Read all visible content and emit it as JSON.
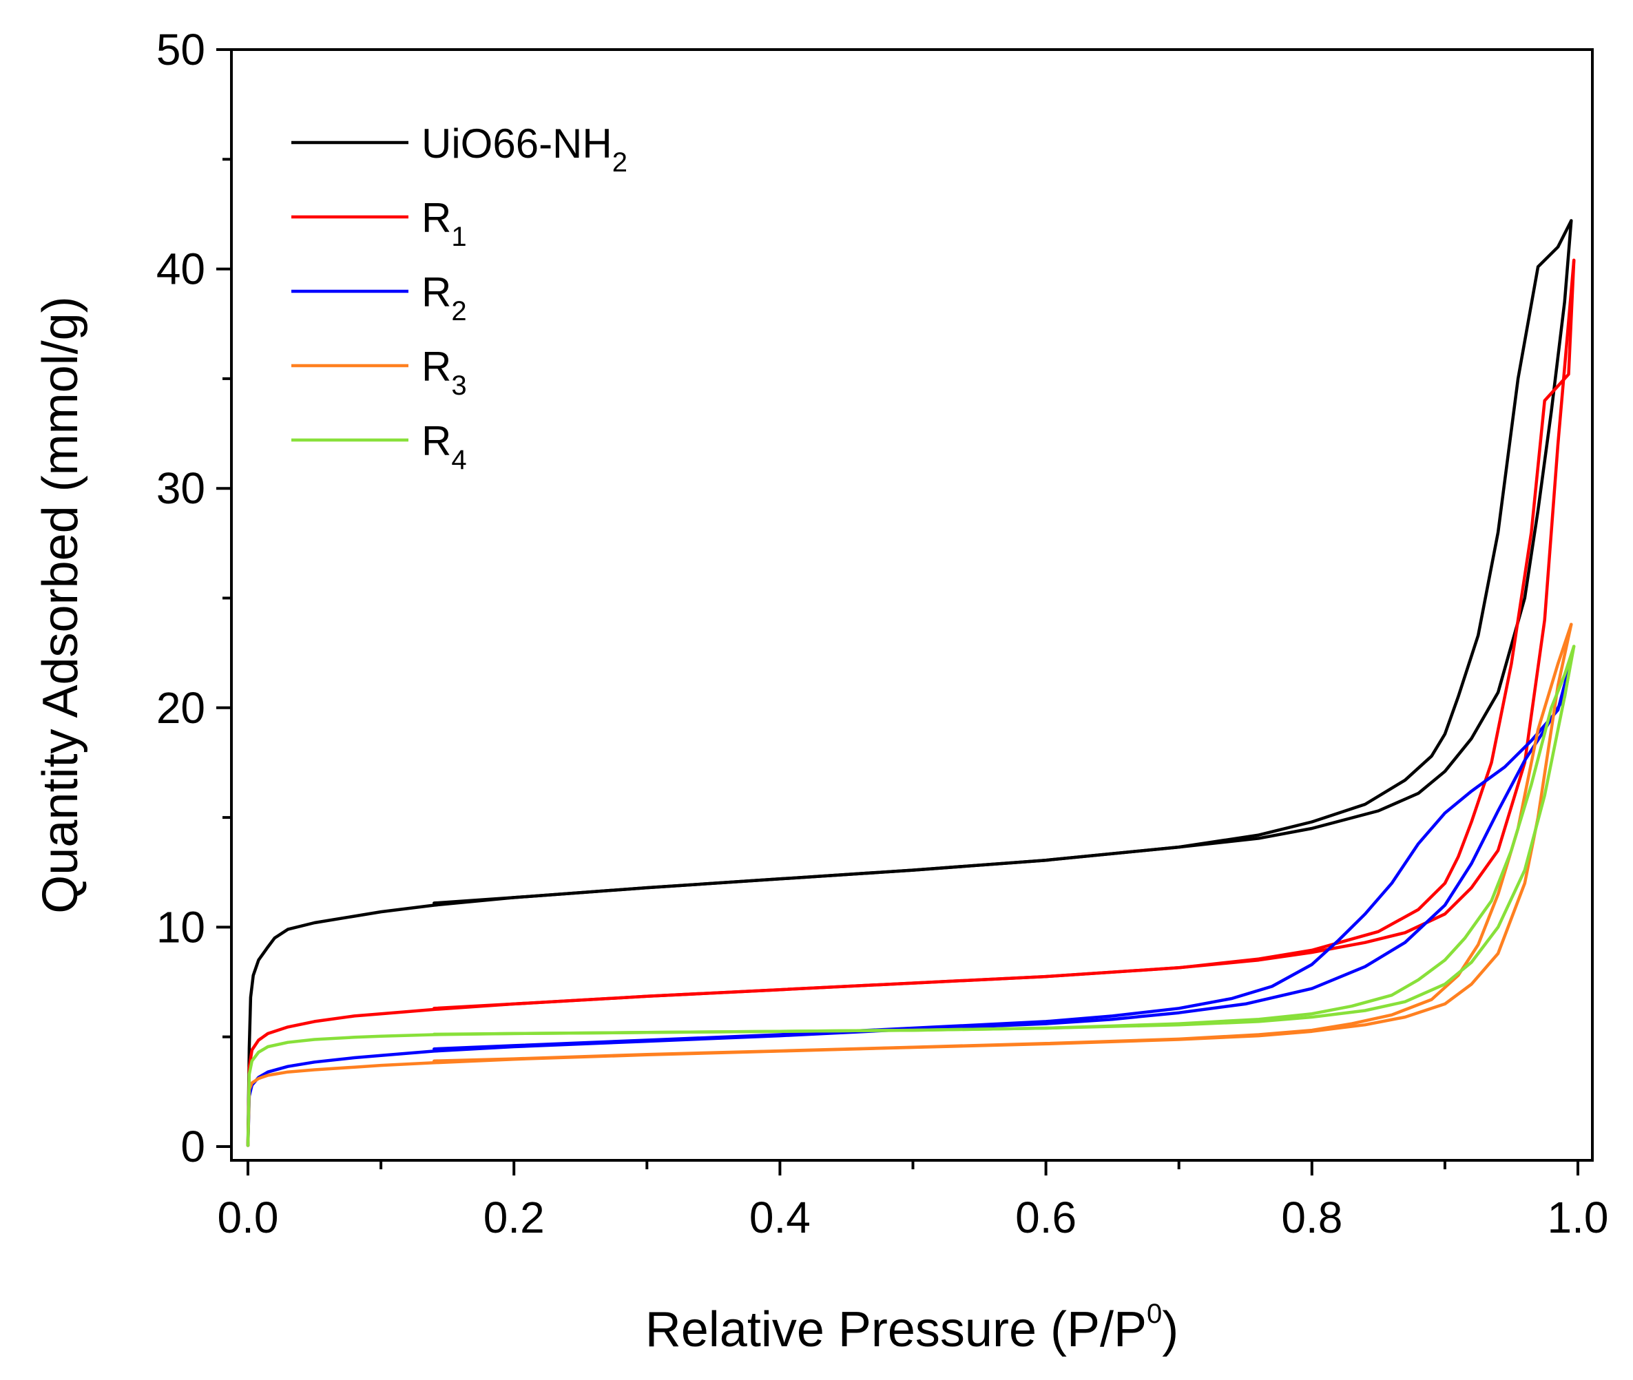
{
  "chart_data": {
    "type": "line",
    "title": "",
    "xlabel": "Relative Pressure (P/P",
    "xlabel_sup": "0",
    "xlabel_end": ")",
    "ylabel": "Quantity Adsorbed (mmol/g)",
    "xlim": [
      0,
      1.0
    ],
    "ylim": [
      0,
      50
    ],
    "x_ticks": [
      "0.0",
      "0.2",
      "0.4",
      "0.6",
      "0.8",
      "1.0"
    ],
    "x_tick_values": [
      0,
      0.2,
      0.4,
      0.6,
      0.8,
      1.0
    ],
    "y_ticks": [
      "0",
      "10",
      "20",
      "30",
      "40",
      "50"
    ],
    "y_tick_values": [
      0,
      10,
      20,
      30,
      40,
      50
    ],
    "grid": false,
    "legend_position": "top-left",
    "series": [
      {
        "name": "UiO66-NH",
        "name_sub": "2",
        "color": "#000000",
        "adsorption": [
          [
            0.0,
            0.05
          ],
          [
            0.001,
            4.5
          ],
          [
            0.002,
            6.8
          ],
          [
            0.004,
            7.8
          ],
          [
            0.008,
            8.5
          ],
          [
            0.015,
            9.1
          ],
          [
            0.02,
            9.5
          ],
          [
            0.03,
            9.9
          ],
          [
            0.05,
            10.2
          ],
          [
            0.08,
            10.5
          ],
          [
            0.1,
            10.7
          ],
          [
            0.14,
            11.0
          ],
          [
            0.2,
            11.35
          ],
          [
            0.3,
            11.8
          ],
          [
            0.4,
            12.2
          ],
          [
            0.5,
            12.6
          ],
          [
            0.6,
            13.05
          ],
          [
            0.7,
            13.65
          ],
          [
            0.76,
            14.05
          ],
          [
            0.8,
            14.5
          ],
          [
            0.85,
            15.3
          ],
          [
            0.88,
            16.1
          ],
          [
            0.9,
            17.1
          ],
          [
            0.92,
            18.6
          ],
          [
            0.94,
            20.7
          ],
          [
            0.96,
            25.0
          ],
          [
            0.97,
            29.0
          ],
          [
            0.98,
            33.5
          ],
          [
            0.99,
            38.5
          ],
          [
            0.995,
            42.2
          ]
        ],
        "desorption": [
          [
            0.995,
            42.2
          ],
          [
            0.985,
            41.0
          ],
          [
            0.97,
            40.1
          ],
          [
            0.955,
            35.0
          ],
          [
            0.94,
            28.0
          ],
          [
            0.925,
            23.3
          ],
          [
            0.91,
            20.5
          ],
          [
            0.9,
            18.8
          ],
          [
            0.89,
            17.8
          ],
          [
            0.87,
            16.7
          ],
          [
            0.84,
            15.6
          ],
          [
            0.8,
            14.8
          ],
          [
            0.76,
            14.2
          ],
          [
            0.7,
            13.65
          ],
          [
            0.6,
            13.05
          ],
          [
            0.5,
            12.6
          ],
          [
            0.4,
            12.2
          ],
          [
            0.3,
            11.8
          ],
          [
            0.2,
            11.35
          ],
          [
            0.14,
            11.1
          ]
        ]
      },
      {
        "name": "R",
        "name_sub": "1",
        "color": "#ff0000",
        "adsorption": [
          [
            0.0,
            0.05
          ],
          [
            0.001,
            3.6
          ],
          [
            0.003,
            4.4
          ],
          [
            0.008,
            4.85
          ],
          [
            0.015,
            5.15
          ],
          [
            0.03,
            5.45
          ],
          [
            0.05,
            5.7
          ],
          [
            0.08,
            5.95
          ],
          [
            0.1,
            6.05
          ],
          [
            0.14,
            6.25
          ],
          [
            0.2,
            6.5
          ],
          [
            0.3,
            6.85
          ],
          [
            0.4,
            7.15
          ],
          [
            0.5,
            7.45
          ],
          [
            0.6,
            7.75
          ],
          [
            0.7,
            8.15
          ],
          [
            0.76,
            8.5
          ],
          [
            0.8,
            8.85
          ],
          [
            0.84,
            9.3
          ],
          [
            0.87,
            9.75
          ],
          [
            0.9,
            10.6
          ],
          [
            0.92,
            11.8
          ],
          [
            0.94,
            13.5
          ],
          [
            0.96,
            17.5
          ],
          [
            0.975,
            24.0
          ],
          [
            0.985,
            32.0
          ],
          [
            0.997,
            40.4
          ]
        ],
        "desorption": [
          [
            0.997,
            40.4
          ],
          [
            0.993,
            35.2
          ],
          [
            0.975,
            34.0
          ],
          [
            0.965,
            28.0
          ],
          [
            0.95,
            22.0
          ],
          [
            0.935,
            17.5
          ],
          [
            0.92,
            14.8
          ],
          [
            0.91,
            13.2
          ],
          [
            0.9,
            12.0
          ],
          [
            0.88,
            10.8
          ],
          [
            0.85,
            9.8
          ],
          [
            0.8,
            8.95
          ],
          [
            0.76,
            8.55
          ],
          [
            0.7,
            8.15
          ],
          [
            0.6,
            7.75
          ],
          [
            0.5,
            7.45
          ],
          [
            0.4,
            7.15
          ],
          [
            0.3,
            6.85
          ],
          [
            0.2,
            6.5
          ],
          [
            0.14,
            6.3
          ]
        ]
      },
      {
        "name": "R",
        "name_sub": "2",
        "color": "#0000ff",
        "adsorption": [
          [
            0.0,
            0.05
          ],
          [
            0.001,
            2.3
          ],
          [
            0.003,
            2.8
          ],
          [
            0.008,
            3.15
          ],
          [
            0.015,
            3.4
          ],
          [
            0.03,
            3.65
          ],
          [
            0.05,
            3.85
          ],
          [
            0.08,
            4.05
          ],
          [
            0.1,
            4.15
          ],
          [
            0.14,
            4.35
          ],
          [
            0.2,
            4.55
          ],
          [
            0.3,
            4.8
          ],
          [
            0.4,
            5.05
          ],
          [
            0.5,
            5.35
          ],
          [
            0.6,
            5.6
          ],
          [
            0.65,
            5.8
          ],
          [
            0.7,
            6.1
          ],
          [
            0.75,
            6.5
          ],
          [
            0.8,
            7.2
          ],
          [
            0.84,
            8.2
          ],
          [
            0.87,
            9.3
          ],
          [
            0.9,
            11.0
          ],
          [
            0.92,
            12.9
          ],
          [
            0.94,
            15.3
          ],
          [
            0.96,
            17.6
          ],
          [
            0.975,
            19.0
          ],
          [
            0.99,
            20.5
          ],
          [
            0.995,
            22.2
          ]
        ],
        "desorption": [
          [
            0.995,
            22.2
          ],
          [
            0.985,
            19.9
          ],
          [
            0.965,
            18.5
          ],
          [
            0.945,
            17.3
          ],
          [
            0.92,
            16.2
          ],
          [
            0.9,
            15.2
          ],
          [
            0.88,
            13.8
          ],
          [
            0.86,
            12.0
          ],
          [
            0.84,
            10.6
          ],
          [
            0.82,
            9.4
          ],
          [
            0.8,
            8.3
          ],
          [
            0.77,
            7.3
          ],
          [
            0.74,
            6.75
          ],
          [
            0.7,
            6.3
          ],
          [
            0.65,
            5.95
          ],
          [
            0.6,
            5.7
          ],
          [
            0.5,
            5.4
          ],
          [
            0.4,
            5.1
          ],
          [
            0.3,
            4.85
          ],
          [
            0.2,
            4.6
          ],
          [
            0.14,
            4.45
          ]
        ]
      },
      {
        "name": "R",
        "name_sub": "3",
        "color": "#ff8020",
        "adsorption": [
          [
            0.0,
            0.05
          ],
          [
            0.001,
            2.6
          ],
          [
            0.003,
            2.9
          ],
          [
            0.008,
            3.1
          ],
          [
            0.015,
            3.25
          ],
          [
            0.03,
            3.4
          ],
          [
            0.05,
            3.5
          ],
          [
            0.08,
            3.62
          ],
          [
            0.1,
            3.7
          ],
          [
            0.14,
            3.82
          ],
          [
            0.2,
            3.98
          ],
          [
            0.3,
            4.18
          ],
          [
            0.4,
            4.35
          ],
          [
            0.5,
            4.52
          ],
          [
            0.6,
            4.68
          ],
          [
            0.7,
            4.88
          ],
          [
            0.76,
            5.05
          ],
          [
            0.8,
            5.25
          ],
          [
            0.84,
            5.55
          ],
          [
            0.87,
            5.9
          ],
          [
            0.9,
            6.5
          ],
          [
            0.92,
            7.4
          ],
          [
            0.94,
            8.8
          ],
          [
            0.96,
            12.0
          ],
          [
            0.97,
            15.0
          ],
          [
            0.985,
            21.0
          ],
          [
            0.995,
            23.8
          ]
        ],
        "desorption": [
          [
            0.995,
            23.8
          ],
          [
            0.985,
            22.0
          ],
          [
            0.97,
            19.0
          ],
          [
            0.955,
            14.5
          ],
          [
            0.94,
            11.5
          ],
          [
            0.925,
            9.2
          ],
          [
            0.91,
            7.8
          ],
          [
            0.89,
            6.7
          ],
          [
            0.86,
            6.0
          ],
          [
            0.83,
            5.6
          ],
          [
            0.8,
            5.3
          ],
          [
            0.76,
            5.1
          ],
          [
            0.7,
            4.9
          ],
          [
            0.6,
            4.7
          ],
          [
            0.5,
            4.53
          ],
          [
            0.4,
            4.36
          ],
          [
            0.3,
            4.2
          ],
          [
            0.2,
            4.0
          ],
          [
            0.14,
            3.9
          ]
        ]
      },
      {
        "name": "R",
        "name_sub": "4",
        "color": "#88e03a",
        "adsorption": [
          [
            0.0,
            0.05
          ],
          [
            0.001,
            3.3
          ],
          [
            0.003,
            3.9
          ],
          [
            0.008,
            4.3
          ],
          [
            0.015,
            4.55
          ],
          [
            0.03,
            4.75
          ],
          [
            0.05,
            4.88
          ],
          [
            0.08,
            4.98
          ],
          [
            0.1,
            5.03
          ],
          [
            0.14,
            5.1
          ],
          [
            0.2,
            5.15
          ],
          [
            0.3,
            5.2
          ],
          [
            0.4,
            5.25
          ],
          [
            0.5,
            5.3
          ],
          [
            0.6,
            5.4
          ],
          [
            0.7,
            5.55
          ],
          [
            0.76,
            5.7
          ],
          [
            0.8,
            5.9
          ],
          [
            0.84,
            6.2
          ],
          [
            0.87,
            6.6
          ],
          [
            0.9,
            7.4
          ],
          [
            0.92,
            8.4
          ],
          [
            0.94,
            10.0
          ],
          [
            0.96,
            12.6
          ],
          [
            0.975,
            16.0
          ],
          [
            0.99,
            20.5
          ],
          [
            0.997,
            22.8
          ]
        ],
        "desorption": [
          [
            0.997,
            22.8
          ],
          [
            0.99,
            21.5
          ],
          [
            0.98,
            20.0
          ],
          [
            0.965,
            16.5
          ],
          [
            0.95,
            13.5
          ],
          [
            0.935,
            11.2
          ],
          [
            0.915,
            9.5
          ],
          [
            0.9,
            8.5
          ],
          [
            0.88,
            7.6
          ],
          [
            0.86,
            6.9
          ],
          [
            0.83,
            6.4
          ],
          [
            0.8,
            6.05
          ],
          [
            0.76,
            5.8
          ],
          [
            0.7,
            5.6
          ],
          [
            0.6,
            5.4
          ],
          [
            0.5,
            5.3
          ],
          [
            0.4,
            5.25
          ],
          [
            0.3,
            5.2
          ],
          [
            0.2,
            5.15
          ],
          [
            0.14,
            5.12
          ]
        ]
      }
    ]
  }
}
